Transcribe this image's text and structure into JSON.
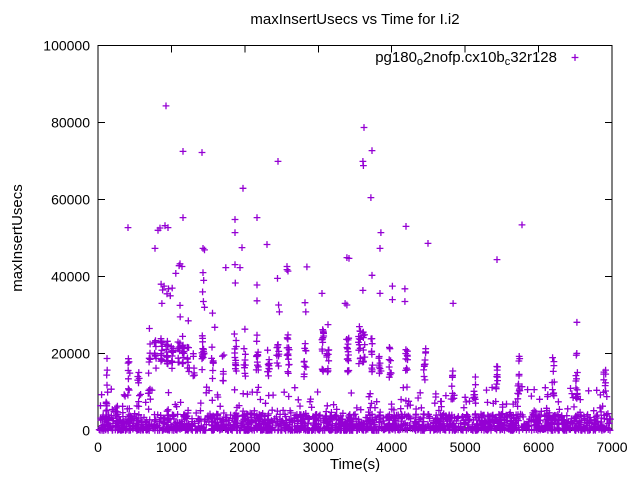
{
  "chart_data": {
    "type": "scatter",
    "title": "maxInsertUsecs vs Time for I.i2",
    "xlabel": "Time(s)",
    "ylabel": "maxInsertUsecs",
    "xlim": [
      0,
      7000
    ],
    "ylim": [
      0,
      100000
    ],
    "xticks": [
      0,
      1000,
      2000,
      3000,
      4000,
      5000,
      6000,
      7000
    ],
    "yticks": [
      0,
      20000,
      40000,
      60000,
      80000,
      100000
    ],
    "grid": false,
    "plot_background": "#ffffff",
    "axis_color": "#000000",
    "legend": {
      "position": "top-right-inside",
      "label_display": "pg180o2nofp.cx10bc32r128",
      "label_parts": [
        {
          "type": "text",
          "value": "pg180"
        },
        {
          "type": "sub",
          "value": "o"
        },
        {
          "type": "text",
          "value": "2nofp.cx10b"
        },
        {
          "type": "sub",
          "value": "c"
        },
        {
          "type": "text",
          "value": "32r128"
        }
      ]
    },
    "series": [
      {
        "name": "pg180o2nofp.cx10bc32r128",
        "marker": "plus",
        "color": "#9400d3",
        "points": [
          [
            926,
            84300
          ],
          [
            3622,
            78700
          ],
          [
            3731,
            72700
          ],
          [
            1158,
            72500
          ],
          [
            1416,
            72200
          ],
          [
            2451,
            69900
          ],
          [
            3608,
            69900
          ],
          [
            3615,
            68800
          ],
          [
            1975,
            62900
          ],
          [
            3717,
            60500
          ],
          [
            1158,
            55300
          ],
          [
            2166,
            55300
          ],
          [
            1866,
            54800
          ],
          [
            5774,
            53400
          ],
          [
            912,
            53200
          ],
          [
            4194,
            53000
          ],
          [
            953,
            52700
          ],
          [
            409,
            52700
          ],
          [
            845,
            52600
          ],
          [
            817,
            52000
          ],
          [
            3853,
            51400
          ],
          [
            1866,
            51400
          ],
          [
            4494,
            48600
          ],
          [
            2302,
            48300
          ],
          [
            1961,
            47500
          ],
          [
            776,
            47300
          ],
          [
            1430,
            47300
          ],
          [
            3840,
            47300
          ],
          [
            1450,
            46900
          ],
          [
            3390,
            44900
          ],
          [
            3418,
            44700
          ],
          [
            5434,
            44400
          ],
          [
            1117,
            43300
          ],
          [
            1866,
            43100
          ],
          [
            1105,
            42800
          ],
          [
            2574,
            42600
          ],
          [
            1144,
            42600
          ],
          [
            2845,
            42500
          ],
          [
            1740,
            42300
          ],
          [
            1934,
            42300
          ],
          [
            2574,
            41800
          ],
          [
            2588,
            41400
          ],
          [
            1430,
            41000
          ],
          [
            1060,
            40800
          ],
          [
            3731,
            40300
          ],
          [
            2445,
            39500
          ],
          [
            1440,
            39000
          ],
          [
            1870,
            38300
          ],
          [
            860,
            38000
          ],
          [
            2166,
            37800
          ],
          [
            900,
            37500
          ],
          [
            4010,
            37500
          ],
          [
            1010,
            37000
          ],
          [
            960,
            36800
          ],
          [
            4180,
            36800
          ],
          [
            880,
            36500
          ],
          [
            3608,
            36400
          ],
          [
            1425,
            36000
          ],
          [
            3050,
            35600
          ],
          [
            3840,
            35600
          ],
          [
            940,
            35500
          ],
          [
            985,
            35000
          ],
          [
            4010,
            34000
          ],
          [
            2166,
            33700
          ],
          [
            1435,
            33500
          ],
          [
            4180,
            33500
          ],
          [
            2819,
            33200
          ],
          [
            870,
            33000
          ],
          [
            3365,
            33000
          ],
          [
            4836,
            33000
          ],
          [
            2460,
            32600
          ],
          [
            3390,
            32600
          ],
          [
            1117,
            32500
          ],
          [
            1450,
            32000
          ],
          [
            2830,
            30800
          ],
          [
            2470,
            30800
          ],
          [
            1560,
            30500
          ],
          [
            1120,
            29500
          ],
          [
            1230,
            28500
          ],
          [
            6522,
            28100
          ],
          [
            3132,
            27500
          ],
          [
            3560,
            27000
          ],
          [
            1590,
            26800
          ],
          [
            700,
            26500
          ],
          [
            2000,
            26300
          ],
          [
            3060,
            26200
          ],
          [
            122,
            18700
          ],
          [
            125,
            15700
          ],
          [
            118,
            14400
          ],
          [
            122,
            11800
          ]
        ],
        "spike_columns": [
          {
            "x": 120,
            "y_min": 4000,
            "y_max": 12000,
            "count": 6
          },
          {
            "x": 250,
            "y_min": 3000,
            "y_max": 9000,
            "count": 5
          },
          {
            "x": 420,
            "y_min": 5000,
            "y_max": 21000,
            "count": 10
          },
          {
            "x": 550,
            "y_min": 6000,
            "y_max": 18000,
            "count": 8
          },
          {
            "x": 700,
            "y_min": 8000,
            "y_max": 24000,
            "count": 12
          },
          {
            "x": 780,
            "y_min": 15000,
            "y_max": 24000,
            "count": 10
          },
          {
            "x": 860,
            "y_min": 17000,
            "y_max": 25500,
            "count": 14
          },
          {
            "x": 940,
            "y_min": 17000,
            "y_max": 25000,
            "count": 14
          },
          {
            "x": 1010,
            "y_min": 16000,
            "y_max": 24000,
            "count": 10
          },
          {
            "x": 1100,
            "y_min": 15000,
            "y_max": 23000,
            "count": 9
          },
          {
            "x": 1160,
            "y_min": 17000,
            "y_max": 25000,
            "count": 12
          },
          {
            "x": 1230,
            "y_min": 15000,
            "y_max": 22000,
            "count": 8
          },
          {
            "x": 1300,
            "y_min": 14000,
            "y_max": 21000,
            "count": 6
          },
          {
            "x": 1430,
            "y_min": 15000,
            "y_max": 25000,
            "count": 14
          },
          {
            "x": 1560,
            "y_min": 13000,
            "y_max": 22000,
            "count": 8
          },
          {
            "x": 1700,
            "y_min": 12000,
            "y_max": 20000,
            "count": 6
          },
          {
            "x": 1870,
            "y_min": 14000,
            "y_max": 26000,
            "count": 12
          },
          {
            "x": 2000,
            "y_min": 14000,
            "y_max": 22000,
            "count": 8
          },
          {
            "x": 2170,
            "y_min": 15000,
            "y_max": 25000,
            "count": 12
          },
          {
            "x": 2320,
            "y_min": 14000,
            "y_max": 23000,
            "count": 10
          },
          {
            "x": 2450,
            "y_min": 15000,
            "y_max": 24000,
            "count": 10
          },
          {
            "x": 2590,
            "y_min": 14000,
            "y_max": 25000,
            "count": 14
          },
          {
            "x": 2820,
            "y_min": 13000,
            "y_max": 23000,
            "count": 10
          },
          {
            "x": 3060,
            "y_min": 14000,
            "y_max": 26000,
            "count": 14
          },
          {
            "x": 3130,
            "y_min": 15000,
            "y_max": 24000,
            "count": 10
          },
          {
            "x": 3400,
            "y_min": 14000,
            "y_max": 25000,
            "count": 14
          },
          {
            "x": 3560,
            "y_min": 16000,
            "y_max": 26000,
            "count": 12
          },
          {
            "x": 3620,
            "y_min": 17000,
            "y_max": 26000,
            "count": 12
          },
          {
            "x": 3730,
            "y_min": 15000,
            "y_max": 24000,
            "count": 10
          },
          {
            "x": 3840,
            "y_min": 14000,
            "y_max": 22000,
            "count": 8
          },
          {
            "x": 3980,
            "y_min": 13000,
            "y_max": 22000,
            "count": 10
          },
          {
            "x": 4200,
            "y_min": 13000,
            "y_max": 21000,
            "count": 10
          },
          {
            "x": 4450,
            "y_min": 13000,
            "y_max": 22000,
            "count": 10
          },
          {
            "x": 4840,
            "y_min": 8000,
            "y_max": 16000,
            "count": 8
          },
          {
            "x": 5130,
            "y_min": 8000,
            "y_max": 16000,
            "count": 8
          },
          {
            "x": 5430,
            "y_min": 9000,
            "y_max": 18000,
            "count": 10
          },
          {
            "x": 5730,
            "y_min": 9000,
            "y_max": 19500,
            "count": 12
          },
          {
            "x": 6200,
            "y_min": 9000,
            "y_max": 19000,
            "count": 10
          },
          {
            "x": 6520,
            "y_min": 8000,
            "y_max": 20500,
            "count": 12
          },
          {
            "x": 6900,
            "y_min": 8000,
            "y_max": 16000,
            "count": 8
          }
        ],
        "dense_band": {
          "x_min": 15,
          "x_max": 6985,
          "y_min": 0,
          "y_max": 4200,
          "count": 1500
        },
        "fringe": {
          "x_min": 15,
          "x_max": 6985,
          "y_min": 4000,
          "y_max": 11500,
          "count": 210
        }
      }
    ]
  }
}
